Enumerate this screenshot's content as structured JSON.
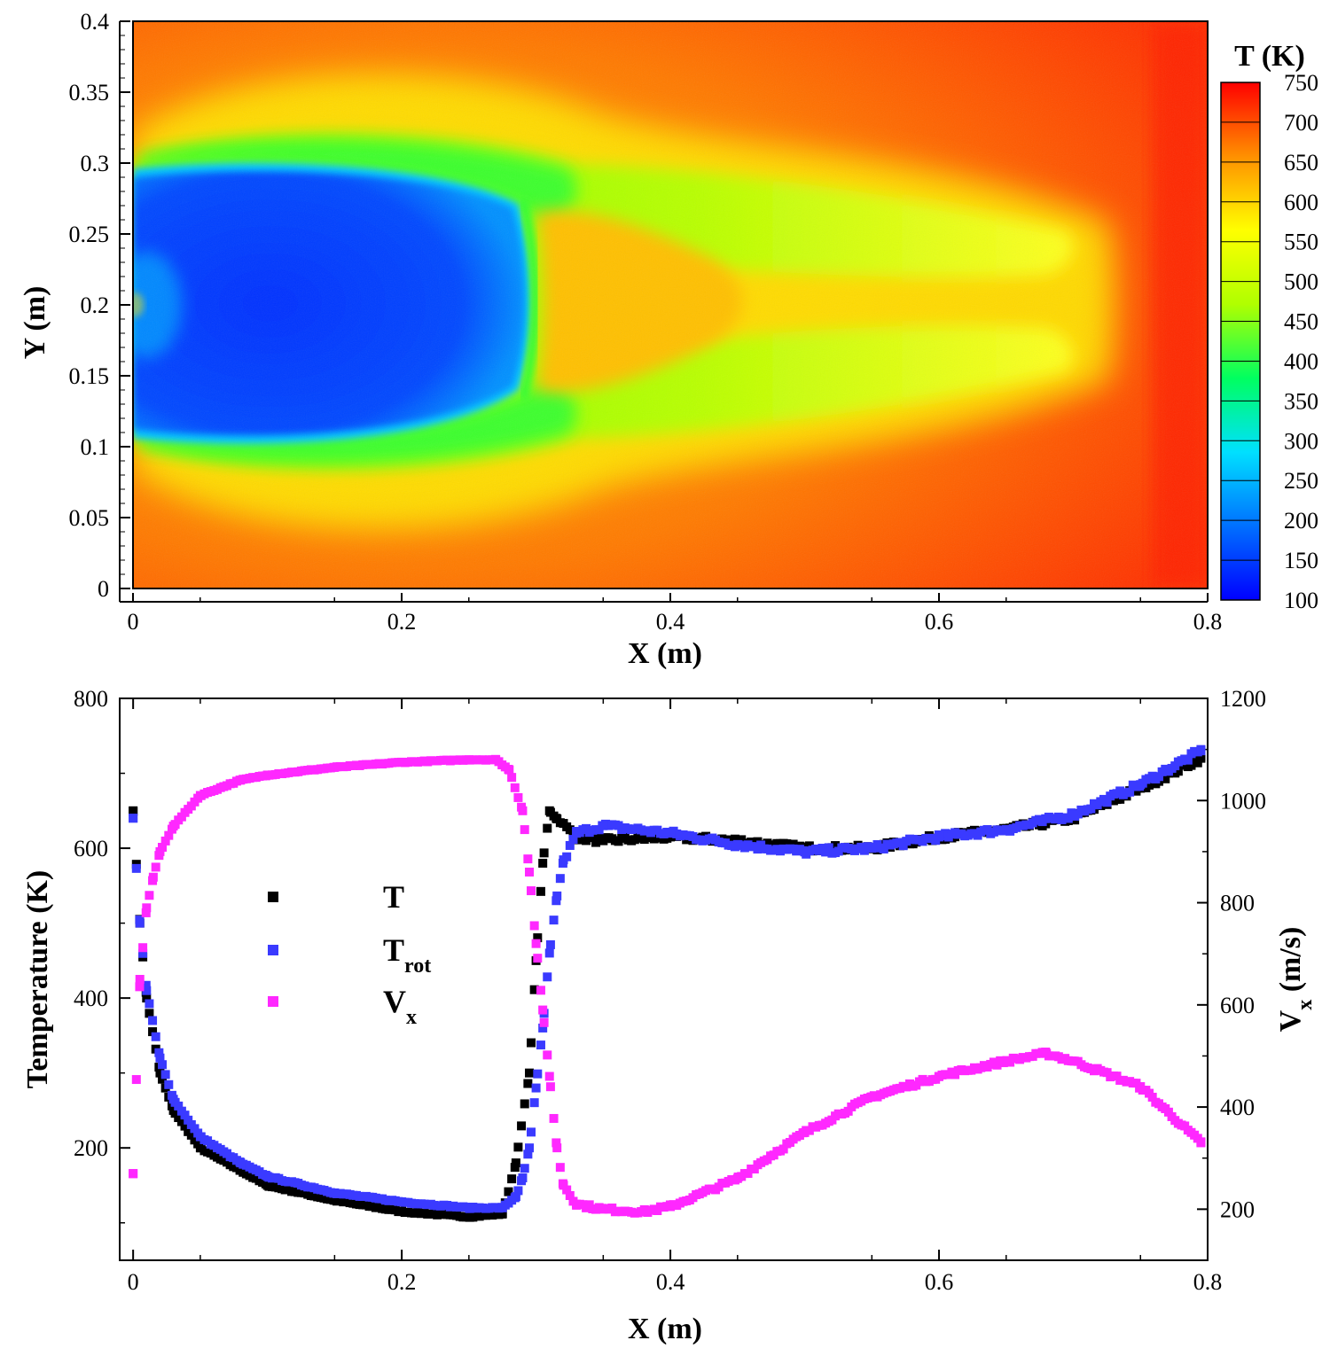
{
  "chart_data": [
    {
      "type": "heatmap",
      "xlabel": "X (m)",
      "ylabel": "Y (m)",
      "xlim": [
        0,
        0.8
      ],
      "ylim": [
        0,
        0.4
      ],
      "x_ticks": [
        "0",
        "0.2",
        "0.4",
        "0.6",
        "0.8"
      ],
      "y_ticks": [
        "0",
        "0.05",
        "0.1",
        "0.15",
        "0.2",
        "0.25",
        "0.3",
        "0.35",
        "0.4"
      ],
      "colorbar": {
        "title": "T (K)",
        "range": [
          100,
          750
        ],
        "ticks": [
          "100",
          "150",
          "200",
          "250",
          "300",
          "350",
          "400",
          "450",
          "500",
          "550",
          "600",
          "650",
          "700",
          "750"
        ],
        "colors": [
          "#0000ff",
          "#0070ff",
          "#00e0ff",
          "#00ff60",
          "#b0ff00",
          "#ffff00",
          "#ff9000",
          "#ff0000"
        ]
      },
      "features": {
        "inlet_center": [
          0.0,
          0.2
        ],
        "expansion_core_temperature": 110,
        "mach_disk_x": 0.297,
        "post_shock_temperature": 640,
        "ambient_temperature": 720,
        "shear_layer_temperature": 480
      }
    },
    {
      "type": "scatter",
      "xlabel": "X (m)",
      "ylabel": "Temperature  (K)",
      "y2label": "V",
      "y2label_sub": "x",
      "y2label_unit": " (m/s)",
      "xlim": [
        -0.01,
        0.8
      ],
      "ylim": [
        50,
        800
      ],
      "y2lim": [
        100,
        1200
      ],
      "x_ticks": [
        "0",
        "0.2",
        "0.4",
        "0.6",
        "0.8"
      ],
      "y_ticks": [
        "200",
        "400",
        "600",
        "800"
      ],
      "y2_ticks": [
        "200",
        "400",
        "600",
        "800",
        "1000",
        "1200"
      ],
      "legend": [
        {
          "label": "T",
          "sub": "",
          "color": "#000000"
        },
        {
          "label": "T",
          "sub": "rot",
          "color": "#3a3aff"
        },
        {
          "label": "V",
          "sub": "x",
          "color": "#ff28ff"
        }
      ],
      "series": [
        {
          "name": "T",
          "axis": "left",
          "color": "#000000",
          "x": [
            0.0,
            0.005,
            0.01,
            0.02,
            0.03,
            0.05,
            0.08,
            0.1,
            0.15,
            0.2,
            0.25,
            0.275,
            0.285,
            0.295,
            0.3,
            0.305,
            0.31,
            0.315,
            0.33,
            0.35,
            0.4,
            0.45,
            0.5,
            0.55,
            0.6,
            0.65,
            0.7,
            0.75,
            0.795
          ],
          "y": [
            650,
            500,
            400,
            300,
            250,
            200,
            170,
            150,
            130,
            115,
            108,
            112,
            180,
            300,
            450,
            580,
            650,
            640,
            615,
            610,
            615,
            610,
            600,
            600,
            615,
            625,
            640,
            680,
            720
          ]
        },
        {
          "name": "T_rot",
          "axis": "left",
          "color": "#3a3aff",
          "x": [
            0.0,
            0.005,
            0.01,
            0.02,
            0.03,
            0.05,
            0.08,
            0.1,
            0.15,
            0.2,
            0.25,
            0.275,
            0.285,
            0.29,
            0.295,
            0.3,
            0.305,
            0.31,
            0.315,
            0.32,
            0.33,
            0.35,
            0.4,
            0.45,
            0.5,
            0.55,
            0.6,
            0.65,
            0.7,
            0.75,
            0.795
          ],
          "y": [
            640,
            500,
            410,
            320,
            265,
            215,
            180,
            162,
            140,
            128,
            120,
            120,
            135,
            160,
            200,
            280,
            360,
            460,
            530,
            580,
            620,
            630,
            620,
            605,
            595,
            600,
            615,
            625,
            645,
            685,
            730
          ]
        },
        {
          "name": "V_x",
          "axis": "right",
          "color": "#ff28ff",
          "x": [
            0.0,
            0.005,
            0.01,
            0.015,
            0.02,
            0.03,
            0.05,
            0.08,
            0.1,
            0.15,
            0.2,
            0.25,
            0.27,
            0.28,
            0.29,
            0.295,
            0.3,
            0.305,
            0.31,
            0.315,
            0.32,
            0.33,
            0.35,
            0.38,
            0.4,
            0.45,
            0.5,
            0.55,
            0.6,
            0.65,
            0.68,
            0.7,
            0.75,
            0.795
          ],
          "y": [
            270,
            650,
            790,
            850,
            900,
            950,
            1010,
            1040,
            1050,
            1065,
            1075,
            1080,
            1080,
            1060,
            980,
            860,
            720,
            590,
            460,
            330,
            250,
            210,
            200,
            195,
            205,
            260,
            350,
            420,
            460,
            490,
            505,
            490,
            440,
            330
          ]
        }
      ]
    }
  ]
}
